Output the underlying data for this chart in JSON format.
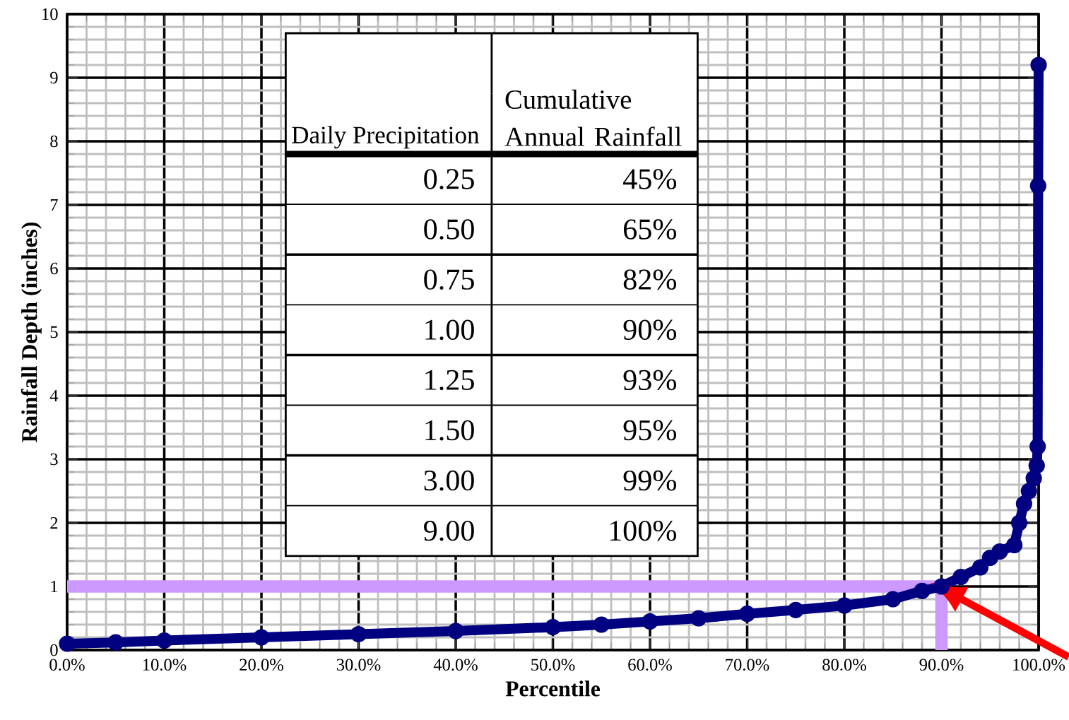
{
  "chart_data": {
    "type": "line",
    "xlabel": "Percentile",
    "ylabel": "Rainfall Depth (inches)",
    "x": [
      0,
      5,
      10,
      20,
      30,
      40,
      50,
      55,
      60,
      65,
      70,
      75,
      80,
      85,
      88,
      90,
      92,
      94,
      95,
      96,
      97.5,
      98,
      98.5,
      99,
      99.5,
      99.8,
      99.9,
      99.95,
      100
    ],
    "values": [
      0.1,
      0.12,
      0.15,
      0.2,
      0.25,
      0.3,
      0.36,
      0.4,
      0.45,
      0.5,
      0.57,
      0.63,
      0.7,
      0.8,
      0.93,
      1.0,
      1.15,
      1.3,
      1.45,
      1.55,
      1.65,
      2.0,
      2.3,
      2.5,
      2.7,
      2.9,
      3.2,
      7.3,
      9.2
    ],
    "color": "#000080",
    "marker": "circle",
    "xlim": [
      0,
      100
    ],
    "ylim": [
      0,
      10
    ],
    "xticks": [
      {
        "value": 0,
        "label": "0.0%"
      },
      {
        "value": 10,
        "label": "10.0%"
      },
      {
        "value": 20,
        "label": "20.0%"
      },
      {
        "value": 30,
        "label": "30.0%"
      },
      {
        "value": 40,
        "label": "40.0%"
      },
      {
        "value": 50,
        "label": "50.0%"
      },
      {
        "value": 60,
        "label": "60.0%"
      },
      {
        "value": 70,
        "label": "70.0%"
      },
      {
        "value": 80,
        "label": "80.0%"
      },
      {
        "value": 90,
        "label": "90.0%"
      },
      {
        "value": 100,
        "label": "100.0%"
      }
    ],
    "yticks": [
      0,
      1,
      2,
      3,
      4,
      5,
      6,
      7,
      8,
      9,
      10
    ],
    "grid": true,
    "ref_lines": [
      {
        "axis": "y",
        "value": 1,
        "color": "#cc99ff"
      },
      {
        "axis": "x",
        "value": 90,
        "color": "#cc99ff"
      }
    ],
    "annotations": [
      "Daily Precipitation",
      "Cumulative Annual Rainfall",
      "0.25",
      "45%",
      "0.50",
      "65%",
      "0.75",
      "82%",
      "1.00",
      "90%",
      "1.25",
      "93%",
      "1.50",
      "95%",
      "3.00",
      "99%",
      "9.00",
      "100%"
    ]
  }
}
